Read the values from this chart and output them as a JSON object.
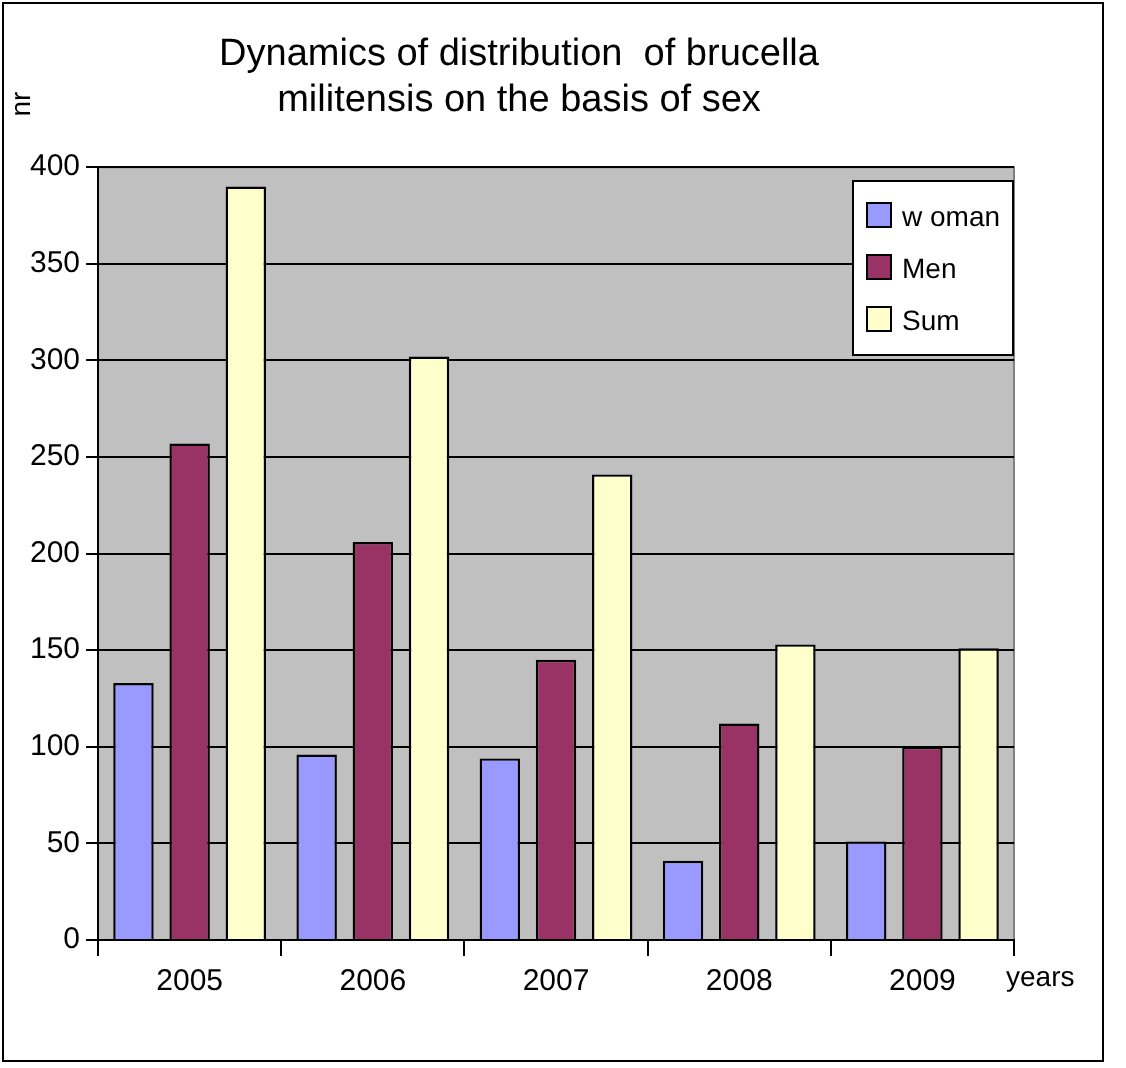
{
  "chart_data": {
    "type": "bar",
    "title": "Dynamics of distribution  of brucella militensis on the basis of sex",
    "xlabel": "years",
    "ylabel": "nr",
    "categories": [
      "2005",
      "2006",
      "2007",
      "2008",
      "2009"
    ],
    "series": [
      {
        "name": "w oman",
        "color": "#9999ff",
        "values": [
          133,
          96,
          94,
          41,
          51
        ]
      },
      {
        "name": "Men",
        "color": "#993366",
        "values": [
          257,
          206,
          145,
          112,
          100
        ]
      },
      {
        "name": "Sum",
        "color": "#ffffcc",
        "values": [
          390,
          302,
          241,
          153,
          151
        ]
      }
    ],
    "ylim": [
      0,
      400
    ],
    "yticks": [
      0,
      50,
      100,
      150,
      200,
      250,
      300,
      350,
      400
    ],
    "grid": "y",
    "legend": "top right"
  }
}
